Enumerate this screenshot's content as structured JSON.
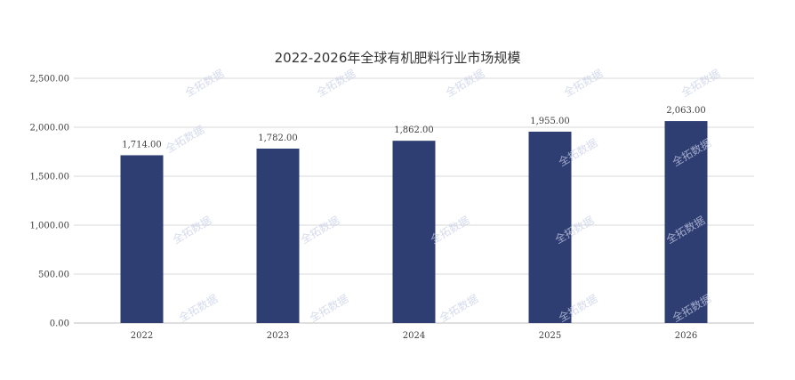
{
  "chart_data": {
    "type": "bar",
    "title": "2022-2026年全球有机肥料行业市场规模",
    "categories": [
      "2022",
      "2023",
      "2024",
      "2025",
      "2026"
    ],
    "values": [
      1714,
      1782,
      1862,
      1955,
      2063
    ],
    "data_labels": [
      "1,714.00",
      "1,782.00",
      "1,862.00",
      "1,955.00",
      "2,063.00"
    ],
    "y_ticks": [
      "0.00",
      "500.00",
      "1,000.00",
      "1,500.00",
      "2,000.00",
      "2,500.00"
    ],
    "ylim": [
      0,
      2500
    ],
    "grid": true,
    "bar_color": "#2e3d72"
  },
  "watermark": "全拓数据"
}
